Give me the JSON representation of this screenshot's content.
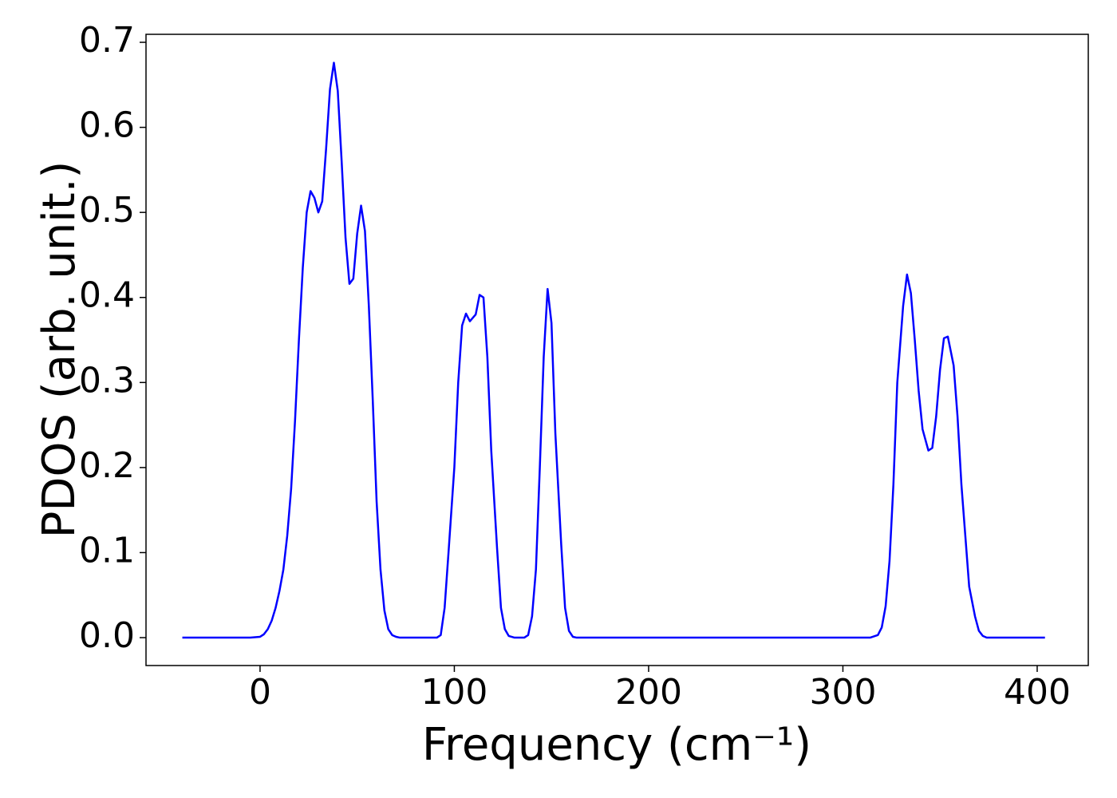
{
  "chart_data": {
    "type": "line",
    "xlabel": "Frequency (cm⁻¹)",
    "ylabel": "PDOS (arb. unit.)",
    "color": "#0000ff",
    "x": [
      -40,
      -5,
      0,
      2,
      4,
      6,
      8,
      10,
      12,
      14,
      16,
      18,
      20,
      22,
      24,
      26,
      28,
      30,
      32,
      34,
      36,
      38,
      40,
      42,
      44,
      46,
      48,
      50,
      52,
      54,
      56,
      58,
      60,
      62,
      64,
      66,
      68,
      70,
      72,
      91,
      93,
      95,
      97,
      100,
      102,
      104,
      106,
      108,
      111,
      113,
      115,
      117,
      119,
      122,
      124,
      126,
      128,
      131,
      136,
      138,
      140,
      142,
      144,
      146,
      148,
      150,
      152,
      155,
      157,
      159,
      161,
      163,
      314,
      318,
      320,
      322,
      324,
      326,
      328,
      331,
      333,
      335,
      337,
      339,
      341,
      344,
      346,
      348,
      350,
      352,
      354,
      357,
      359,
      361,
      363,
      365,
      368,
      370,
      372,
      374,
      404
    ],
    "values": [
      0,
      0,
      0.001,
      0.004,
      0.01,
      0.02,
      0.035,
      0.055,
      0.08,
      0.12,
      0.175,
      0.255,
      0.35,
      0.435,
      0.5,
      0.525,
      0.517,
      0.5,
      0.513,
      0.575,
      0.645,
      0.676,
      0.643,
      0.56,
      0.47,
      0.416,
      0.422,
      0.475,
      0.508,
      0.478,
      0.39,
      0.28,
      0.16,
      0.08,
      0.032,
      0.01,
      0.003,
      0.001,
      0,
      0,
      0.003,
      0.035,
      0.1,
      0.2,
      0.3,
      0.367,
      0.381,
      0.372,
      0.38,
      0.403,
      0.4,
      0.33,
      0.22,
      0.105,
      0.035,
      0.01,
      0.002,
      0,
      0,
      0.003,
      0.025,
      0.08,
      0.2,
      0.33,
      0.41,
      0.37,
      0.24,
      0.11,
      0.035,
      0.008,
      0.001,
      0,
      0,
      0.003,
      0.012,
      0.037,
      0.09,
      0.18,
      0.3,
      0.39,
      0.427,
      0.405,
      0.35,
      0.29,
      0.245,
      0.22,
      0.223,
      0.26,
      0.315,
      0.352,
      0.354,
      0.32,
      0.26,
      0.18,
      0.12,
      0.06,
      0.025,
      0.008,
      0.002,
      0,
      0
    ],
    "xlim": [
      -58.7,
      426.3
    ],
    "xticks": [
      0,
      100,
      200,
      300,
      400
    ],
    "ylim": [
      -0.0328,
      0.7094
    ],
    "yticks": [
      {
        "value": 0,
        "label": "0.0"
      },
      0.1,
      0.2,
      0.3,
      0.4,
      0.5,
      0.6,
      0.7
    ]
  }
}
